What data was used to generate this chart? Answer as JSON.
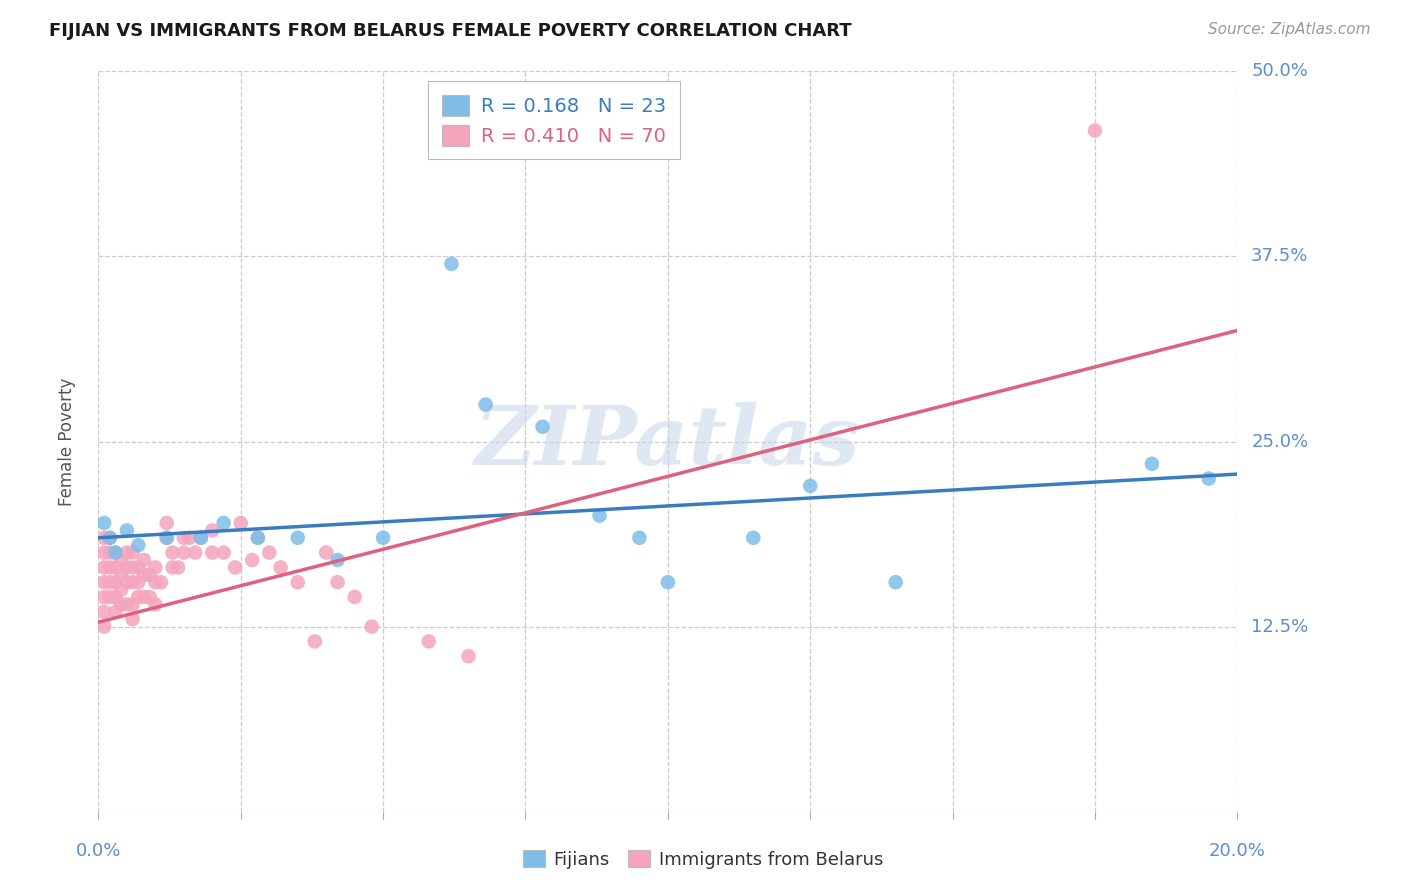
{
  "title": "FIJIAN VS IMMIGRANTS FROM BELARUS FEMALE POVERTY CORRELATION CHART",
  "source_text": "Source: ZipAtlas.com",
  "ylabel": "Female Poverty",
  "xlim": [
    0.0,
    0.2
  ],
  "ylim": [
    0.0,
    0.5
  ],
  "yticks": [
    0.0,
    0.125,
    0.25,
    0.375,
    0.5
  ],
  "ytick_labels": [
    "",
    "12.5%",
    "25.0%",
    "37.5%",
    "50.0%"
  ],
  "xtick_positions": [
    0.0,
    0.025,
    0.05,
    0.075,
    0.1,
    0.125,
    0.15,
    0.175,
    0.2
  ],
  "watermark": "ZIPatlas",
  "fijian_R": 0.168,
  "fijian_N": 23,
  "belarus_R": 0.41,
  "belarus_N": 70,
  "fijian_color": "#7dbde8",
  "belarus_color": "#f4a5bc",
  "fijian_line_color": "#3a7dbf",
  "belarus_line_color": "#e06080",
  "background_color": "#ffffff",
  "grid_color": "#cccccc",
  "title_color": "#1a1a1a",
  "tick_label_color": "#5b8fcc",
  "fijian_x": [
    0.001,
    0.002,
    0.003,
    0.005,
    0.007,
    0.012,
    0.018,
    0.022,
    0.028,
    0.035,
    0.042,
    0.05,
    0.062,
    0.068,
    0.078,
    0.088,
    0.095,
    0.1,
    0.115,
    0.125,
    0.14,
    0.185,
    0.195
  ],
  "fijian_y": [
    0.195,
    0.185,
    0.175,
    0.19,
    0.18,
    0.185,
    0.185,
    0.195,
    0.185,
    0.185,
    0.17,
    0.185,
    0.37,
    0.275,
    0.26,
    0.2,
    0.185,
    0.155,
    0.185,
    0.22,
    0.155,
    0.235,
    0.225
  ],
  "belarus_x": [
    0.001,
    0.001,
    0.001,
    0.001,
    0.001,
    0.001,
    0.001,
    0.002,
    0.002,
    0.002,
    0.002,
    0.002,
    0.003,
    0.003,
    0.003,
    0.003,
    0.003,
    0.004,
    0.004,
    0.004,
    0.004,
    0.005,
    0.005,
    0.005,
    0.005,
    0.006,
    0.006,
    0.006,
    0.006,
    0.006,
    0.007,
    0.007,
    0.007,
    0.008,
    0.008,
    0.008,
    0.009,
    0.009,
    0.01,
    0.01,
    0.01,
    0.011,
    0.012,
    0.012,
    0.013,
    0.013,
    0.014,
    0.015,
    0.015,
    0.016,
    0.017,
    0.018,
    0.02,
    0.02,
    0.022,
    0.024,
    0.025,
    0.027,
    0.028,
    0.03,
    0.032,
    0.035,
    0.038,
    0.04,
    0.042,
    0.045,
    0.048,
    0.058,
    0.065,
    0.175
  ],
  "belarus_y": [
    0.185,
    0.175,
    0.165,
    0.155,
    0.145,
    0.135,
    0.125,
    0.185,
    0.175,
    0.165,
    0.155,
    0.145,
    0.175,
    0.165,
    0.155,
    0.145,
    0.135,
    0.17,
    0.16,
    0.15,
    0.14,
    0.175,
    0.165,
    0.155,
    0.14,
    0.175,
    0.165,
    0.155,
    0.14,
    0.13,
    0.165,
    0.155,
    0.145,
    0.17,
    0.16,
    0.145,
    0.16,
    0.145,
    0.165,
    0.155,
    0.14,
    0.155,
    0.195,
    0.185,
    0.175,
    0.165,
    0.165,
    0.185,
    0.175,
    0.185,
    0.175,
    0.185,
    0.19,
    0.175,
    0.175,
    0.165,
    0.195,
    0.17,
    0.185,
    0.175,
    0.165,
    0.155,
    0.115,
    0.175,
    0.155,
    0.145,
    0.125,
    0.115,
    0.105,
    0.46
  ],
  "fijian_line_x": [
    0.0,
    0.2
  ],
  "fijian_line_y": [
    0.185,
    0.228
  ],
  "belarus_line_x": [
    0.0,
    0.2
  ],
  "belarus_line_y": [
    0.128,
    0.325
  ]
}
